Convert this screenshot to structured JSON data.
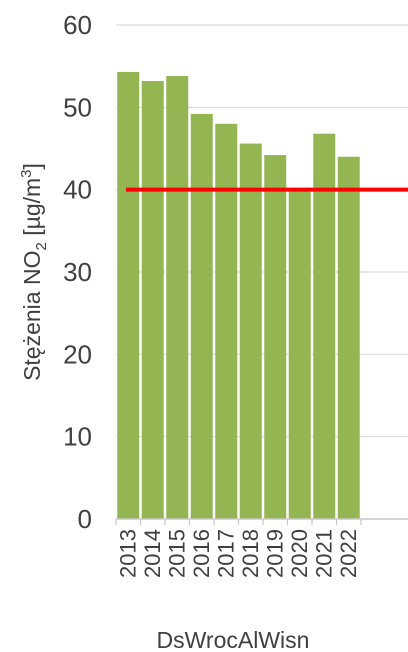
{
  "chart_data": {
    "type": "bar",
    "categories": [
      "2013",
      "2014",
      "2015",
      "2016",
      "2017",
      "2018",
      "2019",
      "2020",
      "2021",
      "2022"
    ],
    "values": [
      54.3,
      53.2,
      53.8,
      49.2,
      48.0,
      45.6,
      44.2,
      40.0,
      46.8,
      44.0
    ],
    "xlabel": "DsWrocAlWisn",
    "ylabel": {
      "prefix": "Stężenia NO",
      "subscript": "2",
      "middle": " [µg/m",
      "superscript": "3",
      "suffix": "]"
    },
    "ylim": [
      0,
      60
    ],
    "yticks": [
      "0",
      "10",
      "20",
      "30",
      "40",
      "50",
      "60"
    ],
    "reference_line": {
      "value": 40,
      "color": "#ff0000"
    },
    "bar_color": "#93b653",
    "grid": true
  }
}
